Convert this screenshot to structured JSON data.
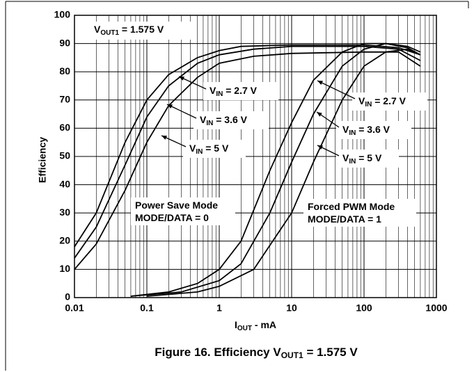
{
  "chart_data": {
    "type": "line",
    "title": {
      "text": "Figure 16. Efficiency V",
      "sub": "OUT1",
      "rest": " = 1.575 V"
    },
    "xlabel": {
      "text": "I",
      "sub": "OUT",
      "rest": " - mA"
    },
    "ylabel": "Efficiency",
    "xscale": "log",
    "xlim": [
      0.01,
      1000
    ],
    "xticks": [
      0.01,
      0.1,
      1,
      10,
      100,
      1000
    ],
    "xminorticks": [
      0.02,
      0.03,
      0.04,
      0.05,
      0.06,
      0.07,
      0.08,
      0.09,
      0.2,
      0.3,
      0.4,
      0.5,
      0.6,
      0.7,
      0.8,
      0.9,
      2,
      3,
      4,
      5,
      6,
      7,
      8,
      9,
      20,
      30,
      40,
      50,
      60,
      70,
      80,
      90,
      200,
      300,
      400,
      500,
      600,
      700,
      800,
      900
    ],
    "ylim": [
      0,
      100
    ],
    "yticks": [
      0,
      10,
      20,
      30,
      40,
      50,
      60,
      70,
      80,
      90,
      100
    ],
    "grid": true,
    "color": "#000000",
    "series": [
      {
        "x": [
          0.01,
          0.02,
          0.05,
          0.1,
          0.2,
          0.5,
          1,
          2,
          10,
          100,
          300,
          600
        ],
        "values": [
          18,
          30,
          55,
          70,
          79,
          85,
          87.5,
          89,
          89.5,
          89.5,
          88.5,
          86
        ]
      },
      {
        "x": [
          0.01,
          0.02,
          0.05,
          0.1,
          0.2,
          0.5,
          1,
          3,
          10,
          100,
          300,
          600
        ],
        "values": [
          14,
          25,
          47,
          64,
          75,
          83,
          86,
          88,
          89,
          89,
          88,
          84
        ]
      },
      {
        "x": [
          0.01,
          0.02,
          0.05,
          0.1,
          0.2,
          0.5,
          1,
          3,
          10,
          100,
          300,
          600
        ],
        "values": [
          10,
          19,
          38,
          55,
          68,
          78,
          83,
          85.5,
          86.5,
          87,
          87,
          82
        ]
      },
      {
        "x": [
          0.06,
          0.2,
          0.5,
          1,
          2,
          5,
          10,
          20,
          50,
          100,
          200,
          400,
          600
        ],
        "values": [
          0.5,
          2,
          5,
          10,
          20,
          45,
          62,
          77,
          87,
          90,
          90,
          88.5,
          86
        ]
      },
      {
        "x": [
          0.06,
          0.3,
          1,
          2,
          5,
          10,
          20,
          50,
          100,
          200,
          400,
          600
        ],
        "values": [
          0.5,
          2,
          6,
          12,
          30,
          48,
          65,
          82,
          88,
          90,
          89,
          87
        ]
      },
      {
        "x": [
          0.1,
          0.5,
          1,
          3,
          10,
          20,
          50,
          100,
          200,
          400,
          600
        ],
        "values": [
          0.5,
          2,
          4,
          10,
          30,
          48,
          70,
          82,
          87,
          88,
          86
        ]
      }
    ],
    "annotations": [
      {
        "text": "V",
        "sub": "OUT1",
        "rest": " = 1.575 V"
      },
      {
        "text": "V",
        "sub": "IN",
        "rest": " = 2.7 V"
      },
      {
        "text": "V",
        "sub": "IN",
        "rest": " = 3.6 V"
      },
      {
        "text": "V",
        "sub": "IN",
        "rest": " = 5 V"
      },
      {
        "text": "V",
        "sub": "IN",
        "rest": " = 2.7 V"
      },
      {
        "text": "V",
        "sub": "IN",
        "rest": " = 3.6 V"
      },
      {
        "text": "V",
        "sub": "IN",
        "rest": " = 5 V"
      },
      {
        "text": "Power Save Mode"
      },
      {
        "text": "MODE/DATA = 0"
      },
      {
        "text": "Forced PWM Mode"
      },
      {
        "text": "MODE/DATA = 1"
      }
    ]
  }
}
